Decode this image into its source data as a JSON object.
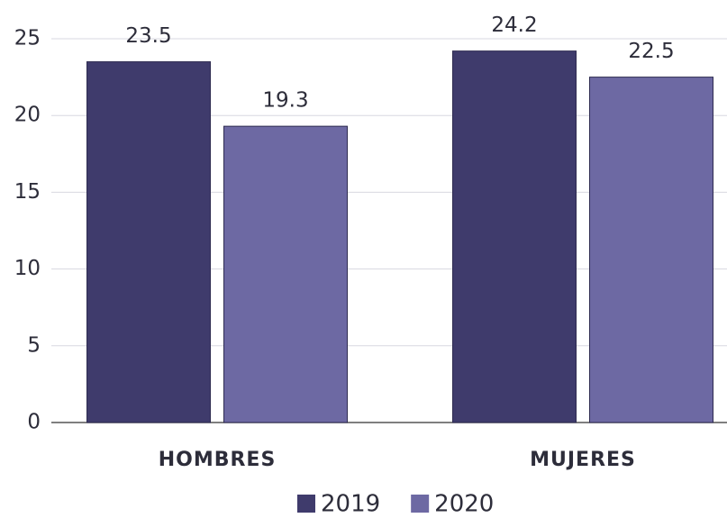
{
  "chart_data": {
    "type": "bar",
    "categories": [
      "HOMBRES",
      "MUJERES"
    ],
    "series": [
      {
        "name": "2019",
        "color": "#3f3b6c",
        "values": [
          23.5,
          24.2
        ]
      },
      {
        "name": "2020",
        "color": "#6d69a3",
        "values": [
          19.3,
          22.5
        ]
      }
    ],
    "ylim": [
      0,
      25
    ],
    "yticks": [
      0,
      5,
      10,
      15,
      20,
      25
    ],
    "grid": true,
    "legend": "bottom"
  }
}
